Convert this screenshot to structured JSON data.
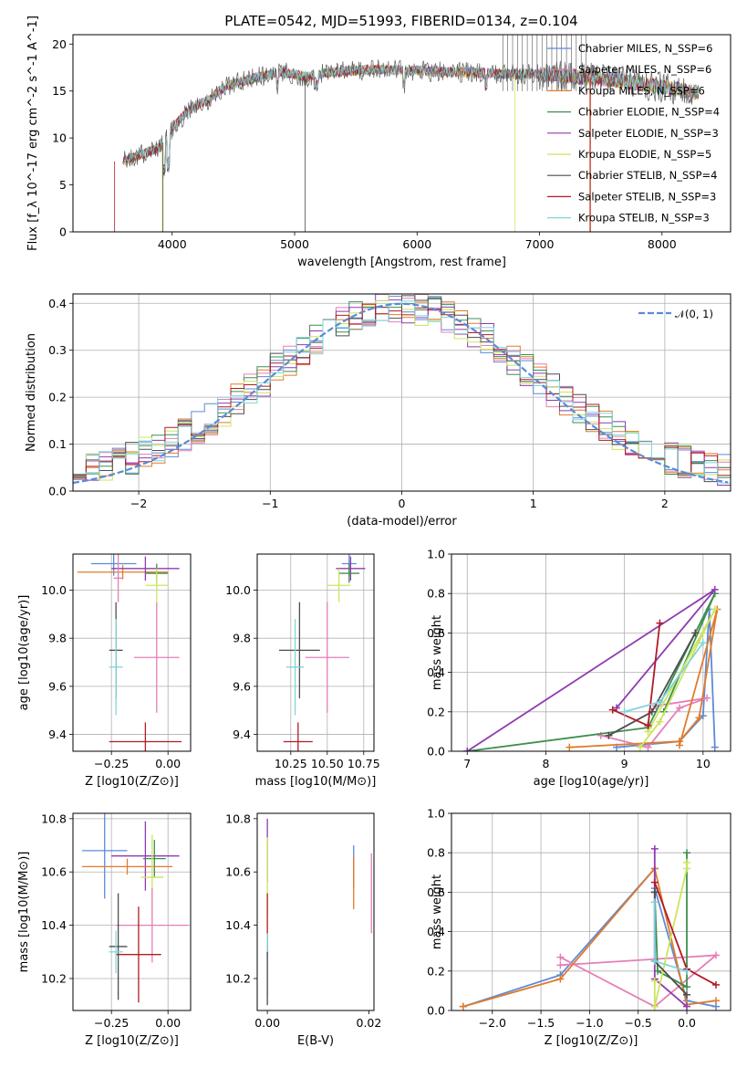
{
  "figure": {
    "title": "PLATE=0542, MJD=51993, FIBERID=0134, z=0.104"
  },
  "colors": {
    "Chabrier MILES": "#5b8bd6",
    "Salpeter MILES": "#e57fb6",
    "Kroupa MILES": "#e07b2d",
    "Chabrier ELODIE": "#3d8f4f",
    "Salpeter ELODIE": "#8e3bb0",
    "Kroupa ELODIE": "#cde45d",
    "Chabrier STELIB": "#4d4d4d",
    "Salpeter STELIB": "#b01c25",
    "Kroupa STELIB": "#80d4dd",
    "gauss": "#5b8bd6"
  },
  "chart_data": [
    {
      "id": "spectrum",
      "type": "line",
      "title": "PLATE=0542, MJD=51993, FIBERID=0134, z=0.104",
      "xlabel": "wavelength [Angstrom, rest frame]",
      "ylabel": "Flux [f_λ 10^-17 erg cm^-2 s^-1 A^-1]",
      "xlim": [
        3190,
        8560
      ],
      "ylim": [
        0,
        21
      ],
      "xticks": [
        "4000",
        "5000",
        "6000",
        "7000",
        "8000"
      ],
      "yticks": [
        "0",
        "5",
        "10",
        "15",
        "20"
      ],
      "grid": false,
      "legend_position": "right",
      "legend": [
        "Chabrier MILES, N_SSP=6",
        "Salpeter MILES, N_SSP=6",
        "Kroupa MILES, N_SSP=6",
        "Chabrier ELODIE, N_SSP=4",
        "Salpeter ELODIE, N_SSP=3",
        "Kroupa ELODIE, N_SSP=5",
        "Chabrier STELIB, N_SSP=4",
        "Salpeter STELIB, N_SSP=3",
        "Kroupa STELIB, N_SSP=3"
      ],
      "continuum": {
        "x": [
          3600,
          3700,
          3800,
          3900,
          4000,
          4100,
          4200,
          4300,
          4400,
          4500,
          4700,
          4900,
          5100,
          5300,
          5500,
          5700,
          5900,
          6100,
          6300,
          6500,
          6700,
          6900,
          7100,
          7300,
          7500,
          7700,
          7900,
          8100,
          8300
        ],
        "y": [
          7.5,
          8.0,
          8.5,
          9.0,
          11.0,
          12.5,
          13.5,
          14.0,
          15.2,
          15.8,
          16.5,
          17.0,
          16.5,
          17.0,
          17.2,
          17.3,
          17.2,
          17.1,
          17.0,
          17.0,
          16.8,
          16.8,
          16.7,
          16.5,
          16.3,
          16.0,
          15.6,
          15.2,
          14.8
        ]
      }
    },
    {
      "id": "residuals",
      "type": "histogram",
      "xlabel": "(data-model)/error",
      "ylabel": "Normed distribution",
      "xlim": [
        -2.5,
        2.5
      ],
      "ylim": [
        0,
        0.42
      ],
      "xticks": [
        "−2",
        "−1",
        "0",
        "1",
        "2"
      ],
      "yticks": [
        "0.0",
        "0.1",
        "0.2",
        "0.3",
        "0.4"
      ],
      "grid": true,
      "legend": [
        "𝒩(0, 1)"
      ],
      "legend_position": "top-right",
      "bin_width": 0.1
    },
    {
      "id": "age_vs_Z",
      "type": "errorbar",
      "xlabel": "Z [log10(Z/Z⊙)]",
      "ylabel": "age  [log10(age/yr)]",
      "xlim": [
        -0.42,
        0.1
      ],
      "ylim": [
        9.33,
        10.15
      ],
      "xticks": [
        "−0.25",
        "0.00"
      ],
      "yticks": [
        "9.4",
        "9.6",
        "9.8",
        "10.0"
      ],
      "grid": true,
      "points": [
        {
          "model": "Chabrier MILES",
          "x": -0.24,
          "y": 10.11,
          "xerr": 0.1,
          "yerr": 0.05
        },
        {
          "model": "Kroupa MILES",
          "x": -0.2,
          "y": 10.075,
          "xerr": 0.2,
          "yerr": 0.03
        },
        {
          "model": "Salpeter ELODIE",
          "x": -0.1,
          "y": 10.09,
          "xerr": 0.15,
          "yerr": 0.05
        },
        {
          "model": "Chabrier ELODIE",
          "x": -0.05,
          "y": 10.07,
          "xerr": 0.05,
          "yerr": 0.04
        },
        {
          "model": "Salpeter MILES",
          "x": -0.22,
          "y": 10.05,
          "xerr": 0.02,
          "yerr": 0.1
        },
        {
          "model": "Kroupa ELODIE",
          "x": -0.05,
          "y": 10.02,
          "xerr": 0.05,
          "yerr": 0.07
        },
        {
          "model": "Chabrier STELIB",
          "x": -0.23,
          "y": 9.75,
          "xerr": 0.03,
          "yerr": 0.2
        },
        {
          "model": "Kroupa STELIB",
          "x": -0.23,
          "y": 9.68,
          "xerr": 0.03,
          "yerr": 0.2
        },
        {
          "model": "Salpeter MILES",
          "x": -0.05,
          "y": 9.72,
          "xerr": 0.1,
          "yerr": 0.23
        },
        {
          "model": "Salpeter STELIB",
          "x": -0.1,
          "y": 9.37,
          "xerr": 0.16,
          "yerr": 0.08
        }
      ]
    },
    {
      "id": "age_vs_mass",
      "type": "errorbar",
      "xlabel": "mass [log10(M/M⊙)]",
      "ylabel": "",
      "xlim": [
        10.02,
        10.82
      ],
      "ylim": [
        9.33,
        10.15
      ],
      "xticks": [
        "10.25",
        "10.50",
        "10.75"
      ],
      "yticks": [
        "9.4",
        "9.6",
        "9.8",
        "10.0"
      ],
      "grid": true,
      "points": [
        {
          "model": "Chabrier MILES",
          "x": 10.65,
          "y": 10.11,
          "xerr": 0.05,
          "yerr": 0.05
        },
        {
          "model": "Salpeter ELODIE",
          "x": 10.66,
          "y": 10.09,
          "xerr": 0.1,
          "yerr": 0.05
        },
        {
          "model": "Chabrier ELODIE",
          "x": 10.65,
          "y": 10.07,
          "xerr": 0.07,
          "yerr": 0.04
        },
        {
          "model": "Kroupa ELODIE",
          "x": 10.58,
          "y": 10.02,
          "xerr": 0.08,
          "yerr": 0.07
        },
        {
          "model": "Chabrier STELIB",
          "x": 10.31,
          "y": 9.75,
          "xerr": 0.14,
          "yerr": 0.2
        },
        {
          "model": "Kroupa STELIB",
          "x": 10.28,
          "y": 9.68,
          "xerr": 0.06,
          "yerr": 0.2
        },
        {
          "model": "Salpeter MILES",
          "x": 10.5,
          "y": 9.72,
          "xerr": 0.15,
          "yerr": 0.23
        },
        {
          "model": "Salpeter STELIB",
          "x": 10.3,
          "y": 9.37,
          "xerr": 0.1,
          "yerr": 0.08
        }
      ]
    },
    {
      "id": "weight_vs_age",
      "type": "line",
      "xlabel": "age  [log10(age/yr)]",
      "ylabel": "mass weight",
      "xlim": [
        6.8,
        10.35
      ],
      "ylim": [
        0,
        1.0
      ],
      "xticks": [
        "7",
        "8",
        "9",
        "10"
      ],
      "yticks": [
        "0.0",
        "0.2",
        "0.4",
        "0.6",
        "0.8",
        "1.0"
      ],
      "grid": true,
      "series": [
        {
          "model": "Chabrier MILES",
          "x": [
            8.9,
            9.7,
            10.0,
            10.08,
            10.15
          ],
          "y": [
            0.02,
            0.05,
            0.18,
            0.72,
            0.02
          ]
        },
        {
          "model": "Salpeter MILES",
          "x": [
            8.7,
            9.3,
            9.7,
            10.05,
            9.4
          ],
          "y": [
            0.08,
            0.02,
            0.22,
            0.27,
            0.23
          ]
        },
        {
          "model": "Kroupa MILES",
          "x": [
            8.3,
            9.7,
            9.95,
            10.18,
            9.7
          ],
          "y": [
            0.02,
            0.05,
            0.17,
            0.72,
            0.03
          ]
        },
        {
          "model": "Chabrier ELODIE",
          "x": [
            7.0,
            9.3,
            10.15,
            9.5
          ],
          "y": [
            0.0,
            0.12,
            0.8,
            0.2
          ]
        },
        {
          "model": "Salpeter ELODIE",
          "x": [
            7.0,
            10.15,
            8.9
          ],
          "y": [
            0.0,
            0.82,
            0.22
          ]
        },
        {
          "model": "Kroupa ELODIE",
          "x": [
            9.2,
            9.45,
            10.15,
            9.3
          ],
          "y": [
            0.02,
            0.15,
            0.72,
            0.1
          ]
        },
        {
          "model": "Chabrier STELIB",
          "x": [
            8.8,
            9.35,
            9.9
          ],
          "y": [
            0.08,
            0.2,
            0.6
          ]
        },
        {
          "model": "Salpeter STELIB",
          "x": [
            8.85,
            9.3,
            9.45
          ],
          "y": [
            0.21,
            0.13,
            0.65
          ]
        },
        {
          "model": "Kroupa STELIB",
          "x": [
            9.0,
            9.45,
            10.0
          ],
          "y": [
            0.2,
            0.25,
            0.55
          ]
        }
      ]
    },
    {
      "id": "mass_vs_Z",
      "type": "errorbar",
      "xlabel": "Z [log10(Z/Z⊙)]",
      "ylabel": "mass [log10(M/M⊙)]",
      "xlim": [
        -0.42,
        0.1
      ],
      "ylim": [
        10.08,
        10.82
      ],
      "xticks": [
        "−0.25",
        "0.00"
      ],
      "yticks": [
        "10.2",
        "10.4",
        "10.6",
        "10.8"
      ],
      "grid": true,
      "points": [
        {
          "model": "Chabrier MILES",
          "x": -0.28,
          "y": 10.68,
          "xerr": 0.1,
          "yerr": 0.18
        },
        {
          "model": "Salpeter ELODIE",
          "x": -0.1,
          "y": 10.66,
          "xerr": 0.15,
          "yerr": 0.13
        },
        {
          "model": "Chabrier ELODIE",
          "x": -0.06,
          "y": 10.65,
          "xerr": 0.05,
          "yerr": 0.07
        },
        {
          "model": "Kroupa MILES",
          "x": -0.18,
          "y": 10.62,
          "xerr": 0.2,
          "yerr": 0.03
        },
        {
          "model": "Kroupa ELODIE",
          "x": -0.07,
          "y": 10.58,
          "xerr": 0.05,
          "yerr": 0.16
        },
        {
          "model": "Salpeter MILES",
          "x": -0.07,
          "y": 10.4,
          "xerr": 0.16,
          "yerr": 0.14
        },
        {
          "model": "Salpeter STELIB",
          "x": -0.13,
          "y": 10.29,
          "xerr": 0.1,
          "yerr": 0.18
        },
        {
          "model": "Chabrier STELIB",
          "x": -0.22,
          "y": 10.32,
          "xerr": 0.04,
          "yerr": 0.2
        },
        {
          "model": "Kroupa STELIB",
          "x": -0.23,
          "y": 10.3,
          "xerr": 0.03,
          "yerr": 0.08
        }
      ]
    },
    {
      "id": "mass_vs_ebv",
      "type": "errorbar",
      "xlabel": "E(B-V)",
      "ylabel": "",
      "xlim": [
        -0.002,
        0.021
      ],
      "ylim": [
        10.08,
        10.82
      ],
      "xticks": [
        "0.00",
        "0.02"
      ],
      "yticks": [
        "10.2",
        "10.4",
        "10.6",
        "10.8"
      ],
      "grid": false,
      "points": [
        {
          "model": "Salpeter ELODIE",
          "x": 0.0,
          "y": 10.68,
          "yerr": 0.12
        },
        {
          "model": "Kroupa ELODIE",
          "x": 0.0,
          "y": 10.58,
          "yerr": 0.15
        },
        {
          "model": "Salpeter STELIB",
          "x": 0.0,
          "y": 10.4,
          "yerr": 0.12
        },
        {
          "model": "Kroupa STELIB",
          "x": 0.0,
          "y": 10.25,
          "yerr": 0.12
        },
        {
          "model": "Chabrier STELIB",
          "x": 0.0,
          "y": 10.2,
          "yerr": 0.1
        },
        {
          "model": "Chabrier MILES",
          "x": 0.017,
          "y": 10.62,
          "yerr": 0.08
        },
        {
          "model": "Kroupa MILES",
          "x": 0.017,
          "y": 10.56,
          "yerr": 0.1
        },
        {
          "model": "Salpeter MILES",
          "x": 0.0205,
          "y": 10.52,
          "yerr": 0.15
        }
      ]
    },
    {
      "id": "weight_vs_Z",
      "type": "line",
      "xlabel": "Z [log10(Z/Z⊙)]",
      "ylabel": "mass weight",
      "xlim": [
        -2.42,
        0.45
      ],
      "ylim": [
        0,
        1.0
      ],
      "xticks": [
        "−2.0",
        "−1.5",
        "−1.0",
        "−0.5",
        "0.0"
      ],
      "yticks": [
        "0.0",
        "0.2",
        "0.4",
        "0.6",
        "0.8",
        "1.0"
      ],
      "grid": true,
      "series": [
        {
          "model": "Chabrier MILES",
          "x": [
            -2.3,
            -1.3,
            -0.33,
            -0.33,
            0.0,
            0.3
          ],
          "y": [
            0.02,
            0.18,
            0.72,
            0.62,
            0.05,
            0.02
          ]
        },
        {
          "model": "Salpeter MILES",
          "x": [
            -1.3,
            -0.33,
            0.3,
            -1.3
          ],
          "y": [
            0.27,
            0.02,
            0.28,
            0.23
          ]
        },
        {
          "model": "Kroupa MILES",
          "x": [
            -2.3,
            -1.3,
            -0.33,
            0.0,
            0.3
          ],
          "y": [
            0.02,
            0.16,
            0.72,
            0.03,
            0.05
          ]
        },
        {
          "model": "Chabrier ELODIE",
          "x": [
            -0.33,
            -0.3,
            0.0,
            0.0
          ],
          "y": [
            0.6,
            0.2,
            0.12,
            0.8
          ]
        },
        {
          "model": "Salpeter ELODIE",
          "x": [
            -0.33,
            -0.33,
            0.0
          ],
          "y": [
            0.82,
            0.16,
            0.02
          ]
        },
        {
          "model": "Kroupa ELODIE",
          "x": [
            -0.33,
            -0.33,
            0.0,
            0.0
          ],
          "y": [
            0.15,
            0.02,
            0.72,
            0.75
          ]
        },
        {
          "model": "Chabrier STELIB",
          "x": [
            -0.33,
            -0.33,
            0.0
          ],
          "y": [
            0.6,
            0.25,
            0.08
          ]
        },
        {
          "model": "Salpeter STELIB",
          "x": [
            -0.33,
            0.0,
            0.3
          ],
          "y": [
            0.65,
            0.21,
            0.13
          ]
        },
        {
          "model": "Kroupa STELIB",
          "x": [
            -0.33,
            -0.33,
            0.0
          ],
          "y": [
            0.55,
            0.25,
            0.2
          ]
        }
      ]
    }
  ]
}
